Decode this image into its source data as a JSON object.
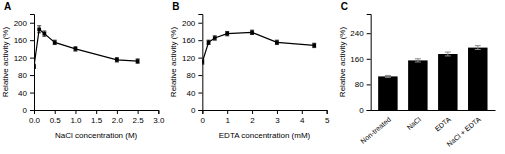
{
  "chart_data": [
    {
      "type": "line",
      "title": "A",
      "x": [
        0.0,
        0.125,
        0.25,
        0.5,
        1.0,
        2.0,
        2.5
      ],
      "values": [
        100,
        185,
        175,
        155,
        140,
        115,
        112
      ],
      "yerr": [
        5,
        8,
        6,
        5,
        5,
        5,
        5
      ],
      "xlabel": "NaCl concentration (M)",
      "ylabel": "Relative activity (%)",
      "xlim": [
        0.0,
        3.0
      ],
      "ylim": [
        0,
        220
      ],
      "xticks": [
        {
          "value": 0.0,
          "label": "0.0"
        },
        0.5,
        {
          "value": 1.0,
          "label": "1.0"
        },
        1.5,
        {
          "value": 2.0,
          "label": "2.0"
        },
        2.5,
        {
          "value": 3.0,
          "label": "3.0"
        }
      ],
      "yticks": [
        0,
        40,
        80,
        120,
        160,
        200
      ],
      "color": "#000000",
      "marker": "square",
      "grid": false
    },
    {
      "type": "line",
      "title": "B",
      "x": [
        0.0,
        0.25,
        0.5,
        1.0,
        2.0,
        3.0,
        4.5
      ],
      "values": [
        110,
        155,
        165,
        175,
        178,
        155,
        148
      ],
      "yerr": [
        5,
        5,
        5,
        5,
        5,
        5,
        5
      ],
      "xlabel": "EDTA concentration (mM)",
      "ylabel": "Relative activity (%)",
      "xlim": [
        0,
        5
      ],
      "ylim": [
        0,
        220
      ],
      "xticks": [
        0,
        1,
        2,
        3,
        4,
        5
      ],
      "yticks": [
        0,
        40,
        80,
        120,
        160,
        200
      ],
      "color": "#000000",
      "marker": "square",
      "grid": false
    },
    {
      "type": "bar",
      "title": "C",
      "categories": [
        "Non-treated",
        "NaCl",
        "EDTA",
        "NaCl + EDTA"
      ],
      "values": [
        105,
        155,
        175,
        195
      ],
      "yerr": [
        3,
        5,
        6,
        6
      ],
      "ylabel": "Relative activity (%)",
      "ylim": [
        0,
        300
      ],
      "yticks": [
        0,
        80,
        160,
        240
      ],
      "color": "#000000",
      "grid": false
    }
  ]
}
